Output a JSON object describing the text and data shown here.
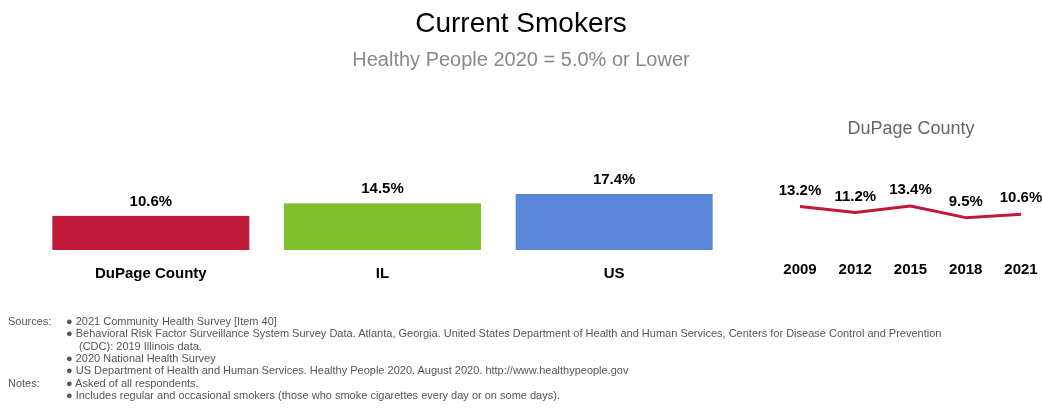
{
  "chart_data": [
    {
      "type": "bar",
      "title": "Current Smokers",
      "subtitle": "Healthy People 2020 = 5.0% or Lower",
      "categories": [
        "DuPage County",
        "IL",
        "US"
      ],
      "values": [
        10.6,
        14.5,
        17.4
      ],
      "colors": [
        "#c0193a",
        "#80bf2f",
        "#5b87d8"
      ],
      "value_labels": [
        "10.6%",
        "14.5%",
        "17.4%"
      ],
      "tick_labels": "x",
      "annotations": [
        "Sources:",
        "● 2021 Community Health Survey [Item 40]",
        "● Behavioral Risk Factor Surveillance System Survey Data. Atlanta, Georgia. United States Department of Health and Human Services, Centers for Disease Control and Prevention (CDC): 2019 Illinois data.",
        "● 2020 National Health Survey",
        "● US Department of Health and Human Services. Healthy People 2020. August 2020. http://www.healthypeople.gov",
        "Notes:",
        "● Asked of all respondents.",
        "● Includes regular and occasional smokers (those who smoke cigarettes every day or on some days)."
      ]
    },
    {
      "type": "line",
      "title": "DuPage County",
      "categories": [
        "2009",
        "2012",
        "2015",
        "2018",
        "2021"
      ],
      "series": [
        {
          "color": "#c0193a",
          "values": [
            13.2,
            11.2,
            13.4,
            9.5,
            10.6
          ],
          "value_labels": [
            "13.2%",
            "11.2%",
            "13.4%",
            "9.5%",
            "10.6%"
          ]
        }
      ],
      "tick_labels": "x",
      "marker": "none"
    }
  ]
}
